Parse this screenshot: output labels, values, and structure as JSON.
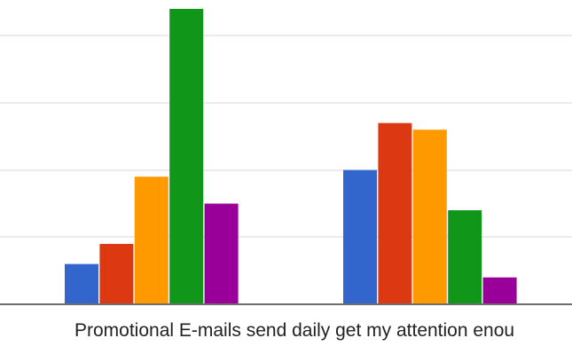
{
  "chart_data": {
    "type": "bar",
    "categories": [
      "",
      "Promotional E-mails send daily get my attention enou"
    ],
    "series": [
      {
        "color": "#3366cc",
        "values": [
          6,
          20
        ]
      },
      {
        "color": "#dc3912",
        "values": [
          9,
          27
        ]
      },
      {
        "color": "#ff9900",
        "values": [
          19,
          26
        ]
      },
      {
        "color": "#109618",
        "values": [
          44,
          14
        ]
      },
      {
        "color": "#990099",
        "values": [
          15,
          4
        ]
      }
    ],
    "ylim": [
      0,
      44
    ],
    "grid": true,
    "gridline_values": [
      10,
      20,
      30,
      40
    ],
    "title": "",
    "xlabel": "",
    "ylabel": ""
  }
}
